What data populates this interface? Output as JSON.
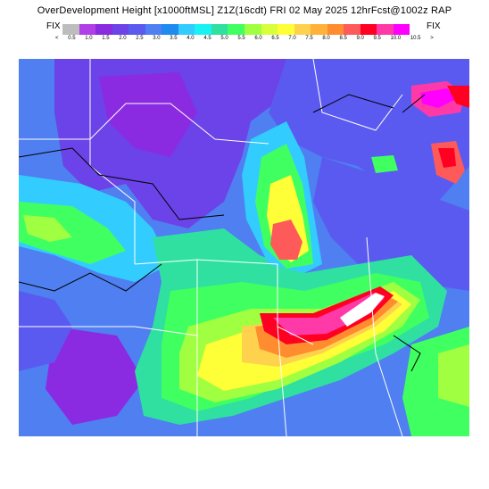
{
  "header": {
    "title": "OverDevelopment Height  [x1000ftMSL]  Z1Z(16cdt)  FRI 02 May 2025   12hrFcst@1002z  RAP",
    "fix_left": "FIX",
    "fix_right": "FIX"
  },
  "legend": {
    "colors": [
      "#bdbdbd",
      "#b23ee8",
      "#8a2be2",
      "#6b43e8",
      "#5a5af0",
      "#4f7ff0",
      "#1f8bf0",
      "#33ccff",
      "#19f2f2",
      "#2fe0a0",
      "#40ff60",
      "#a0ff40",
      "#d7ff3a",
      "#ffff38",
      "#ffd24d",
      "#ffb13a",
      "#ff8c2e",
      "#ff5a5a",
      "#ff0022",
      "#ff3aa8",
      "#ff00ff",
      "#ffffff"
    ],
    "ticks": [
      "<",
      "0.5",
      "1.0",
      "1.5",
      "2.0",
      "2.5",
      "3.0",
      "3.5",
      "4.0",
      "4.5",
      "5.0",
      "5.5",
      "6.0",
      "6.5",
      "7.0",
      "7.5",
      "8.0",
      "8.5",
      "9.0",
      "9.5",
      "10.0",
      "10.5",
      ">"
    ]
  },
  "map": {
    "colors": {
      "background": "#4f7ff0",
      "blue_deep": "#5a5af0",
      "purple": "#6b43e8",
      "violet": "#8a2be2",
      "magenta_purple": "#b23ee8",
      "cyan": "#33ccff",
      "aqua": "#19f2f2",
      "teal": "#2fe0a0",
      "green": "#40ff60",
      "lime": "#a0ff40",
      "yellow_green": "#d7ff3a",
      "yellow": "#ffff38",
      "gold": "#ffd24d",
      "orange": "#ff8c2e",
      "salmon": "#ff5a5a",
      "red": "#ff0022",
      "pink": "#ff3aa8",
      "magenta": "#ff00ff",
      "white": "#ffffff",
      "border_white": "#ffffff",
      "border_black": "#000000"
    }
  }
}
